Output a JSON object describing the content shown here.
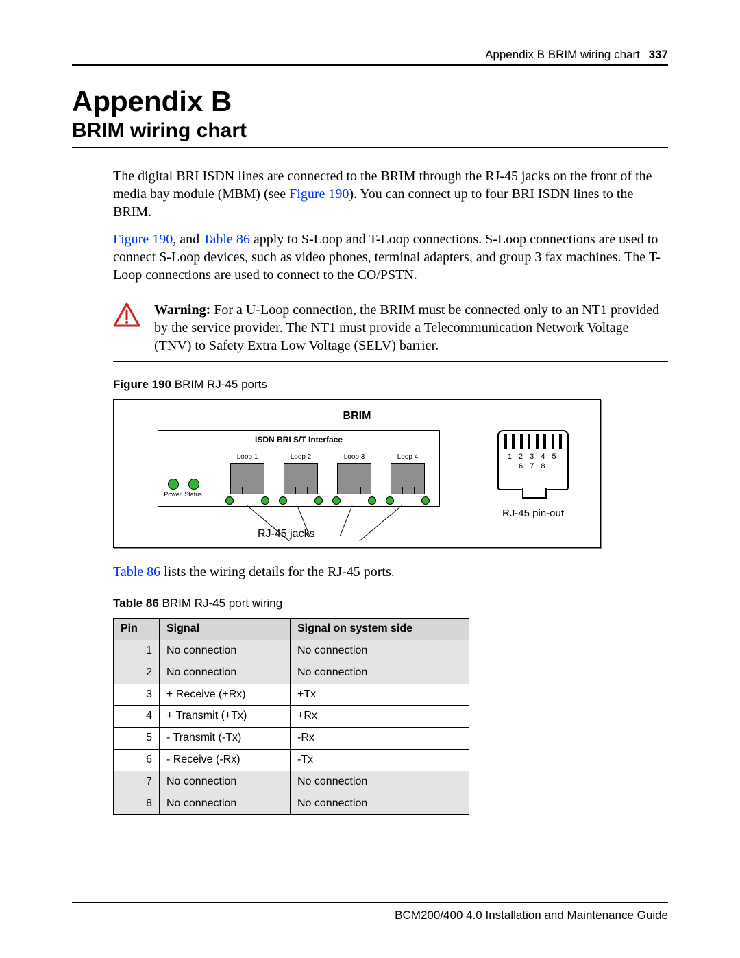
{
  "header": {
    "running": "Appendix B  BRIM wiring chart",
    "page": "337"
  },
  "titles": {
    "appendix": "Appendix B",
    "chapter": "BRIM wiring chart"
  },
  "para1_a": "The digital BRI ISDN lines are connected to the BRIM through the RJ-45 jacks on the front of the media bay module (MBM) (see ",
  "para1_link1": "Figure 190",
  "para1_b": "). You can connect up to four BRI ISDN lines to the BRIM.",
  "para2_link1": "Figure 190",
  "para2_a": ", and ",
  "para2_link2": "Table 86",
  "para2_b": " apply to S-Loop and T-Loop connections. S-Loop connections are used to connect S-Loop devices, such as video phones, terminal adapters, and group 3 fax machines. The T-Loop connections are used to connect to the CO/PSTN.",
  "warning_label": "Warning:",
  "warning_text": " For a U-Loop connection, the BRIM must be connected only to an NT1 provided by the service provider. The NT1 must provide a Telecommunication Network Voltage (TNV) to Safety Extra Low Voltage (SELV) barrier.",
  "figure": {
    "caption_bold": "Figure 190",
    "caption_rest": "   BRIM RJ-45 ports",
    "brim": "BRIM",
    "panel_title": "ISDN BRI S/T Interface",
    "power": "Power",
    "status": "Status",
    "loops": [
      "Loop 1",
      "Loop 2",
      "Loop 3",
      "Loop 4"
    ],
    "jacks_label": "RJ-45 jacks",
    "pin_nums": "1 2 3 4 5 6 7 8",
    "pinout_label": "RJ-45 pin-out"
  },
  "para3_link": "Table 86",
  "para3_rest": " lists the wiring details for the RJ-45 ports.",
  "table": {
    "caption_bold": "Table 86",
    "caption_rest": "   BRIM RJ-45 port wiring",
    "columns": [
      "Pin",
      "Signal",
      "Signal on system side"
    ],
    "rows": [
      {
        "pin": "1",
        "sig": "No connection",
        "sys": "No connection",
        "shade": true
      },
      {
        "pin": "2",
        "sig": "No connection",
        "sys": "No connection",
        "shade": true
      },
      {
        "pin": "3",
        "sig": "+ Receive (+Rx)",
        "sys": "+Tx",
        "shade": false
      },
      {
        "pin": "4",
        "sig": "+ Transmit (+Tx)",
        "sys": "+Rx",
        "shade": false
      },
      {
        "pin": "5",
        "sig": "- Transmit (-Tx)",
        "sys": "-Rx",
        "shade": false
      },
      {
        "pin": "6",
        "sig": "- Receive (-Rx)",
        "sys": "-Tx",
        "shade": false
      },
      {
        "pin": "7",
        "sig": "No connection",
        "sys": "No connection",
        "shade": true
      },
      {
        "pin": "8",
        "sig": "No connection",
        "sys": "No connection",
        "shade": true
      }
    ]
  },
  "footer": "BCM200/400 4.0 Installation and Maintenance Guide",
  "colors": {
    "xref": "#0030ff",
    "warn": "#d22020",
    "led": "#2fb52f",
    "jack": "#8f8f8f",
    "shade": "#e4e4e4",
    "th": "#d6d6d6"
  }
}
